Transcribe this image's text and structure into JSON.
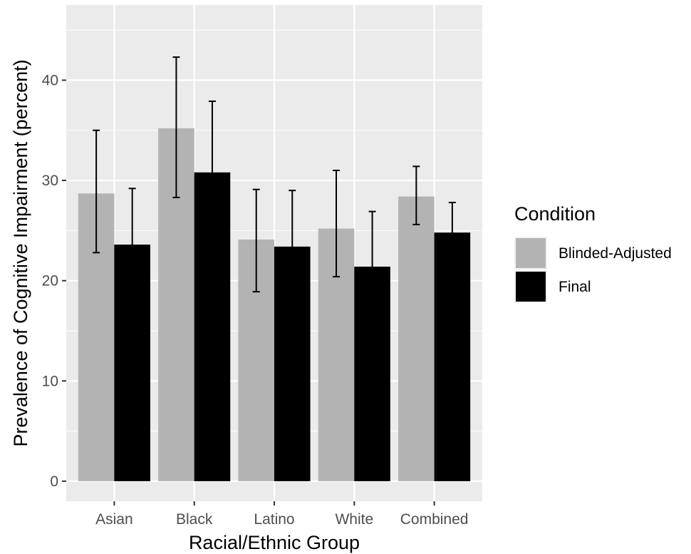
{
  "chart_data": {
    "type": "bar",
    "xlabel": "Racial/Ethnic Group",
    "ylabel": "Prevalence of Cognitive Impairment (percent)",
    "categories": [
      "Asian",
      "Black",
      "Latino",
      "White",
      "Combined"
    ],
    "ylim": [
      -2,
      47.5
    ],
    "yticks": [
      0,
      10,
      20,
      30,
      40
    ],
    "grid": true,
    "legend": {
      "title": "Condition",
      "position": "right"
    },
    "series": [
      {
        "name": "Blinded-Adjusted",
        "color": "#b3b3b3",
        "values": [
          28.7,
          35.2,
          24.1,
          25.2,
          28.4
        ],
        "err_low": [
          22.8,
          28.3,
          18.9,
          20.4,
          25.6
        ],
        "err_high": [
          35.0,
          42.3,
          29.1,
          31.0,
          31.4
        ]
      },
      {
        "name": "Final",
        "color": "#000000",
        "values": [
          23.6,
          30.8,
          23.4,
          21.4,
          24.8
        ],
        "err_low": [
          18.1,
          23.7,
          17.9,
          16.0,
          21.8
        ],
        "err_high": [
          29.2,
          37.9,
          29.0,
          26.9,
          27.8
        ]
      }
    ]
  }
}
